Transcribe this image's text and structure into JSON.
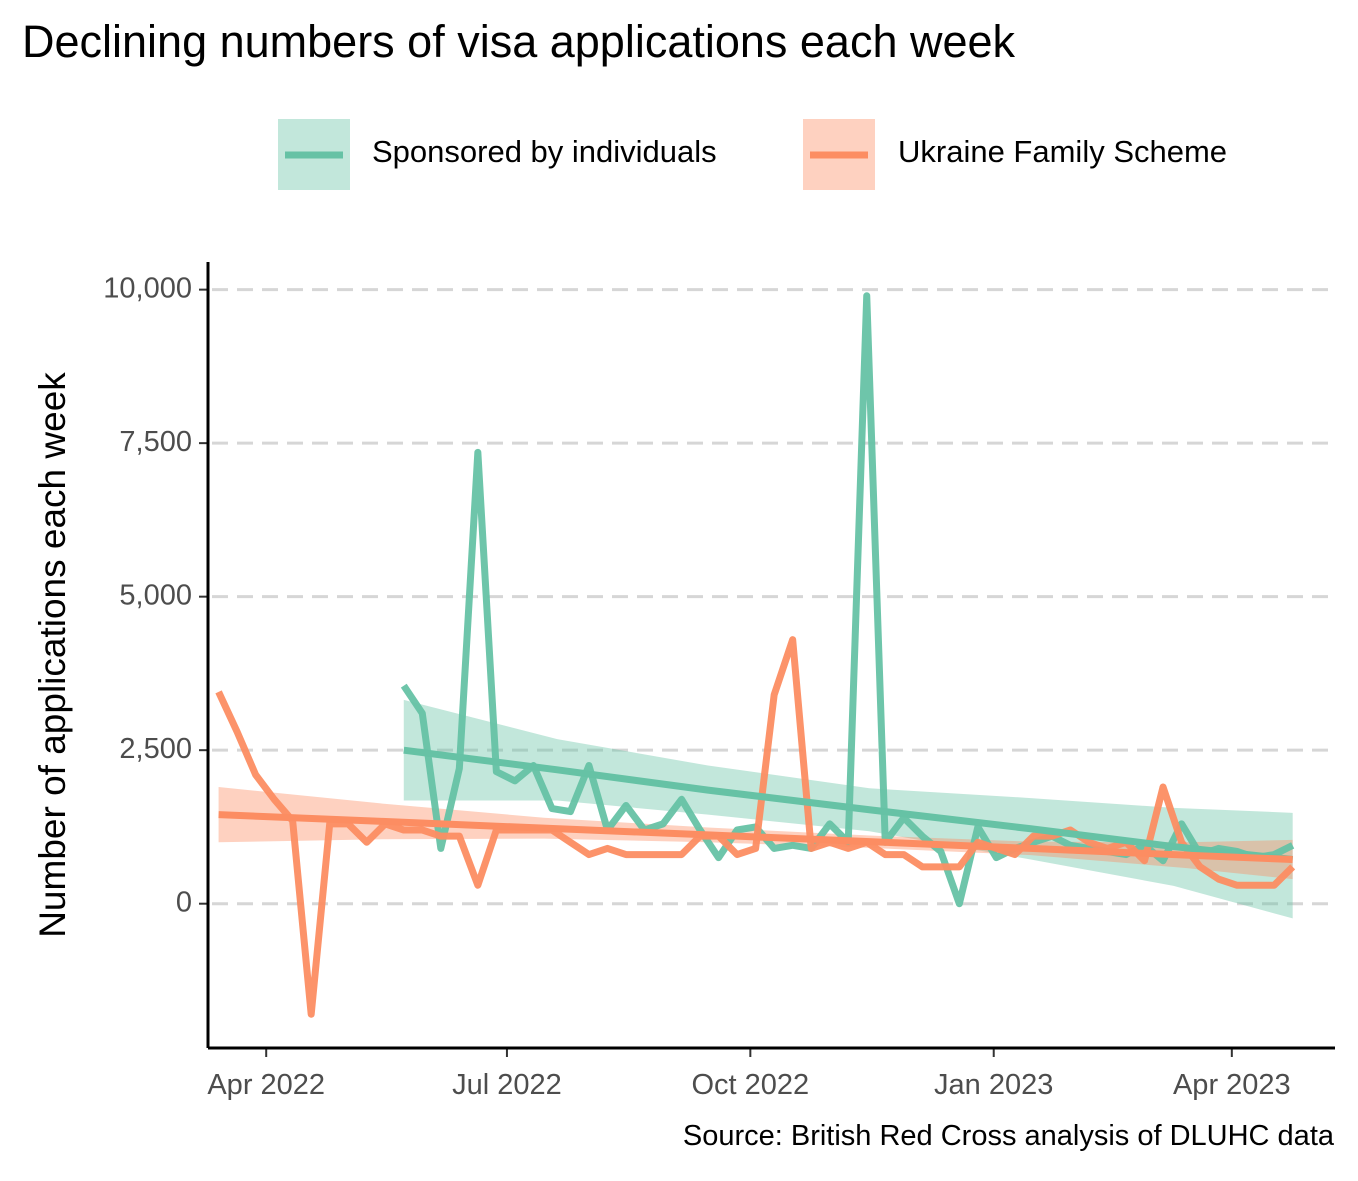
{
  "chart_data": {
    "type": "line",
    "title": "Declining numbers of visa applications each week",
    "xlabel": "",
    "ylabel": "Number of applications each week",
    "caption": "Source: British Red Cross analysis of DLUHC data",
    "ylim": [
      -2350,
      10450
    ],
    "xlim": [
      "2022-03-10",
      "2023-05-10"
    ],
    "yticks": [
      0,
      2500,
      5000,
      7500,
      10000
    ],
    "ytick_labels": [
      "0",
      "2,500",
      "5,000",
      "7,500",
      "10,000"
    ],
    "xticks": [
      "2022-04-01",
      "2022-07-01",
      "2022-10-01",
      "2023-01-01",
      "2023-04-01"
    ],
    "xtick_labels": [
      "Apr 2022",
      "Jul 2022",
      "Oct 2022",
      "Jan 2023",
      "Apr 2023"
    ],
    "grid": "horizontal dashed",
    "legend_position": "top",
    "series": [
      {
        "name": "Sponsored by individuals",
        "color": "#66c2a5",
        "x": [
          "2022-05-23",
          "2022-05-30",
          "2022-06-06",
          "2022-06-13",
          "2022-06-20",
          "2022-06-27",
          "2022-07-04",
          "2022-07-11",
          "2022-07-18",
          "2022-07-25",
          "2022-08-01",
          "2022-08-08",
          "2022-08-15",
          "2022-08-22",
          "2022-08-29",
          "2022-09-05",
          "2022-09-12",
          "2022-09-19",
          "2022-09-26",
          "2022-10-03",
          "2022-10-10",
          "2022-10-17",
          "2022-10-24",
          "2022-10-31",
          "2022-11-07",
          "2022-11-14",
          "2022-11-21",
          "2022-11-28",
          "2022-12-05",
          "2022-12-12",
          "2022-12-19",
          "2022-12-26",
          "2023-01-02",
          "2023-01-09",
          "2023-01-16",
          "2023-01-23",
          "2023-01-30",
          "2023-02-06",
          "2023-02-13",
          "2023-02-20",
          "2023-02-27",
          "2023-03-06",
          "2023-03-13",
          "2023-03-20",
          "2023-03-27",
          "2023-04-03",
          "2023-04-10",
          "2023-04-17",
          "2023-04-24"
        ],
        "y": [
          3550,
          3100,
          900,
          2200,
          7350,
          2150,
          2000,
          2250,
          1550,
          1500,
          2250,
          1200,
          1600,
          1200,
          1300,
          1700,
          1200,
          750,
          1200,
          1250,
          900,
          950,
          900,
          1300,
          1000,
          9900,
          1000,
          1400,
          1100,
          850,
          0,
          1250,
          750,
          900,
          1000,
          1100,
          950,
          900,
          850,
          800,
          950,
          700,
          1300,
          800,
          900,
          850,
          750,
          800,
          950
        ]
      },
      {
        "name": "Ukraine Family Scheme",
        "color": "#fc8d62",
        "x": [
          "2022-03-14",
          "2022-03-21",
          "2022-03-28",
          "2022-04-04",
          "2022-04-11",
          "2022-04-18",
          "2022-04-25",
          "2022-05-02",
          "2022-05-09",
          "2022-05-16",
          "2022-05-23",
          "2022-05-30",
          "2022-06-06",
          "2022-06-13",
          "2022-06-20",
          "2022-06-27",
          "2022-07-04",
          "2022-07-11",
          "2022-07-18",
          "2022-07-25",
          "2022-08-01",
          "2022-08-08",
          "2022-08-15",
          "2022-08-22",
          "2022-08-29",
          "2022-09-05",
          "2022-09-12",
          "2022-09-19",
          "2022-09-26",
          "2022-10-03",
          "2022-10-10",
          "2022-10-17",
          "2022-10-24",
          "2022-10-31",
          "2022-11-07",
          "2022-11-14",
          "2022-11-21",
          "2022-11-28",
          "2022-12-05",
          "2022-12-12",
          "2022-12-19",
          "2022-12-26",
          "2023-01-02",
          "2023-01-09",
          "2023-01-16",
          "2023-01-23",
          "2023-01-30",
          "2023-02-06",
          "2023-02-13",
          "2023-02-20",
          "2023-02-27",
          "2023-03-06",
          "2023-03-13",
          "2023-03-20",
          "2023-03-27",
          "2023-04-03",
          "2023-04-10",
          "2023-04-17",
          "2023-04-24"
        ],
        "y": [
          3450,
          2800,
          2100,
          1700,
          1350,
          -1800,
          1300,
          1300,
          1000,
          1300,
          1200,
          1200,
          1100,
          1100,
          300,
          1200,
          1200,
          1200,
          1200,
          1000,
          800,
          900,
          800,
          800,
          800,
          800,
          1100,
          1100,
          800,
          900,
          3400,
          4300,
          900,
          1000,
          900,
          1000,
          800,
          800,
          600,
          600,
          600,
          1000,
          900,
          800,
          1100,
          1100,
          1200,
          1000,
          900,
          1000,
          700,
          1900,
          1000,
          600,
          400,
          300,
          300,
          300,
          600
        ]
      }
    ],
    "trends": [
      {
        "series": "Sponsored by individuals",
        "x": [
          "2022-05-23",
          "2022-07-20",
          "2022-09-15",
          "2022-11-15",
          "2023-01-15",
          "2023-03-10",
          "2023-04-24"
        ],
        "y": [
          2500,
          2180,
          1850,
          1530,
          1220,
          930,
          720
        ],
        "lower": [
          1680,
          1680,
          1450,
          1180,
          720,
          290,
          -240
        ],
        "upper": [
          3320,
          2680,
          2250,
          1880,
          1720,
          1560,
          1480
        ]
      },
      {
        "series": "Ukraine Family Scheme",
        "x": [
          "2022-03-14",
          "2022-05-15",
          "2022-07-15",
          "2022-09-15",
          "2022-11-15",
          "2023-01-15",
          "2023-03-15",
          "2023-04-24"
        ],
        "y": [
          1450,
          1340,
          1230,
          1120,
          1010,
          900,
          790,
          720
        ],
        "lower": [
          1000,
          1050,
          1060,
          1000,
          910,
          790,
          580,
          400
        ],
        "upper": [
          1900,
          1630,
          1400,
          1240,
          1110,
          1010,
          1000,
          1040
        ]
      }
    ]
  }
}
